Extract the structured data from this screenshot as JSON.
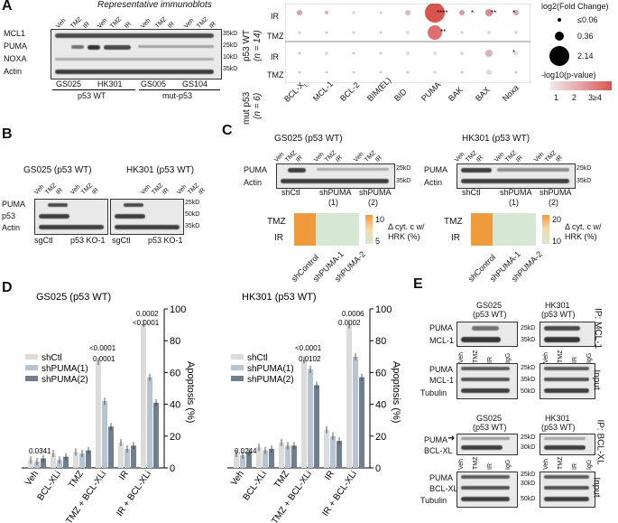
{
  "panelA": {
    "letter": "A",
    "title": "Representative immunoblots",
    "proteins": [
      "MCL1",
      "PUMA",
      "NOXA",
      "Actin"
    ],
    "sizes": [
      "35kD",
      "25kD",
      "10kD",
      "35kD"
    ],
    "lanes": [
      "Veh",
      "TMZ",
      "IR",
      "Veh",
      "TMZ",
      "IR",
      "Veh",
      "TMZ",
      "IR",
      "Veh",
      "TMZ",
      "IR"
    ],
    "lines": [
      "GS025",
      "HK301",
      "GS005",
      "GS104"
    ],
    "groups": [
      "p53 WT",
      "mut-p53"
    ],
    "dot_rows": [
      "IR",
      "TMZ",
      "IR",
      "TMZ"
    ],
    "dot_groups": [
      "p53 WT",
      "(n = 14)",
      "mut p53",
      "(n = 6)"
    ],
    "dot_cols": [
      "BCL-XL",
      "MCL-1",
      "BCL-2",
      "BIM(EL)",
      "BID",
      "PUMA",
      "BAK",
      "BAX",
      "Noxa"
    ],
    "stars": [
      "****",
      "*",
      "**",
      "*",
      "**",
      "*"
    ],
    "legend_size_title": "log2(Fold Change)",
    "legend_sizes": [
      "≤0.06",
      "0.36",
      "2.14"
    ],
    "legend_color_title": "-log10(p-value)",
    "legend_color_ticks": [
      "1",
      "2",
      "3≥4"
    ]
  },
  "panelB": {
    "letter": "B",
    "titles": [
      "GS025 (p53 WT)",
      "HK301 (p53 WT)"
    ],
    "proteins": [
      "PUMA",
      "p53",
      "Actin"
    ],
    "sizes": [
      "25kD",
      "50kD",
      "35kD"
    ],
    "lanes": [
      "Veh",
      "TMZ",
      "IR",
      "Veh",
      "TMZ",
      "IR"
    ],
    "groups": [
      "sgCtl",
      "p53 KO-1",
      "sgCtl",
      "p53 KO-1"
    ]
  },
  "panelC": {
    "letter": "C",
    "titles": [
      "GS025 (p53 WT)",
      "HK301 (p53 WT)"
    ],
    "proteins": [
      "PUMA",
      "Actin"
    ],
    "sizes": [
      "25kD",
      "35kD"
    ],
    "lanes": [
      "Veh",
      "TMZ",
      "IR"
    ],
    "groups": [
      "shCtl",
      "shPUMA",
      "(1)",
      "shPUMA",
      "(2)"
    ],
    "heat_rows": [
      "TMZ",
      "IR"
    ],
    "heat_cols": [
      "shControl",
      "shPUMA-1",
      "shPUMA-2"
    ],
    "heat_values_1": [
      [
        10,
        6,
        6
      ],
      [
        11,
        6,
        5.5
      ]
    ],
    "heat_values_2": [
      [
        19,
        9,
        9
      ],
      [
        20,
        10,
        9
      ]
    ],
    "scale1": [
      "10",
      "5"
    ],
    "scale2": [
      "20",
      "10"
    ],
    "scale_label": "Δ cyt. c w/ HRK (%)"
  },
  "panelD": {
    "letter": "D",
    "chart_data": [
      {
        "type": "bar",
        "title": "GS025 (p53 WT)",
        "categories": [
          "Veh",
          "BCL-XLi",
          "TMZ",
          "TMZ + BCL-XLi",
          "IR",
          "IR + BCL-XLi"
        ],
        "series": [
          {
            "name": "shCtl",
            "values": [
              5,
              9,
              10,
              67,
              16,
              91
            ]
          },
          {
            "name": "shPUMA(1)",
            "values": [
              4,
              5,
              9,
              42,
              12,
              57
            ]
          },
          {
            "name": "shPUMA(2)",
            "values": [
              6,
              7,
              11,
              26,
              14,
              41
            ]
          }
        ],
        "ylabel": "Apoptosis (%)",
        "ylim": [
          0,
          100
        ],
        "yticks": [
          "0",
          "20",
          "40",
          "60",
          "80",
          "100"
        ],
        "pvalues": [
          "0.0341",
          "<0.0001",
          "0.0001",
          "0.0002",
          "<0.0001"
        ]
      },
      {
        "type": "bar",
        "title": "HK301 (p53 WT)",
        "categories": [
          "Veh",
          "BCL-XLi",
          "TMZ",
          "TMZ + BCL-XLi",
          "IR",
          "IR + BCL-XLi"
        ],
        "series": [
          {
            "name": "shCtl",
            "values": [
              9,
              13,
              16,
              68,
              24,
              90
            ]
          },
          {
            "name": "shPUMA(1)",
            "values": [
              8,
              11,
              14,
              62,
              20,
              70
            ]
          },
          {
            "name": "shPUMA(2)",
            "values": [
              10,
              12,
              14,
              52,
              17,
              57
            ]
          }
        ],
        "ylabel": "Apoptosis (%)",
        "ylim": [
          0,
          100
        ],
        "yticks": [
          "0",
          "20",
          "40",
          "60",
          "80",
          "100"
        ],
        "pvalues": [
          "0.0244",
          "<0.0001",
          "0.0102",
          "0.0006",
          "0.0002"
        ]
      }
    ],
    "colors": [
      "#dcdcdc",
      "#b7c4d2",
      "#6f7f91"
    ]
  },
  "panelE": {
    "letter": "E",
    "titles": [
      "GS025",
      "(p53 WT)",
      "HK301",
      "(p53 WT)"
    ],
    "ip1": "IP: MCL-1",
    "ip2": "IP: BCL-XL",
    "input": "Input",
    "proteins1": [
      "PUMA",
      "MCL-1"
    ],
    "proteins_input": [
      "PUMA",
      "MCL-1",
      "Tubulin"
    ],
    "proteins2": [
      "PUMA",
      "BCL-XL"
    ],
    "proteins_input2": [
      "PUMA",
      "BCL-XL",
      "Tubulin"
    ],
    "sizes1": [
      "25kD",
      "35kD"
    ],
    "sizes_input": [
      "25kD",
      "35kD",
      "50kD"
    ],
    "sizes2": [
      "25kD",
      "30kD"
    ],
    "sizes_input2": [
      "25kD",
      "30kD",
      "50kD"
    ],
    "lanes": [
      "Veh",
      "TMZ",
      "IR",
      "IgG"
    ]
  }
}
